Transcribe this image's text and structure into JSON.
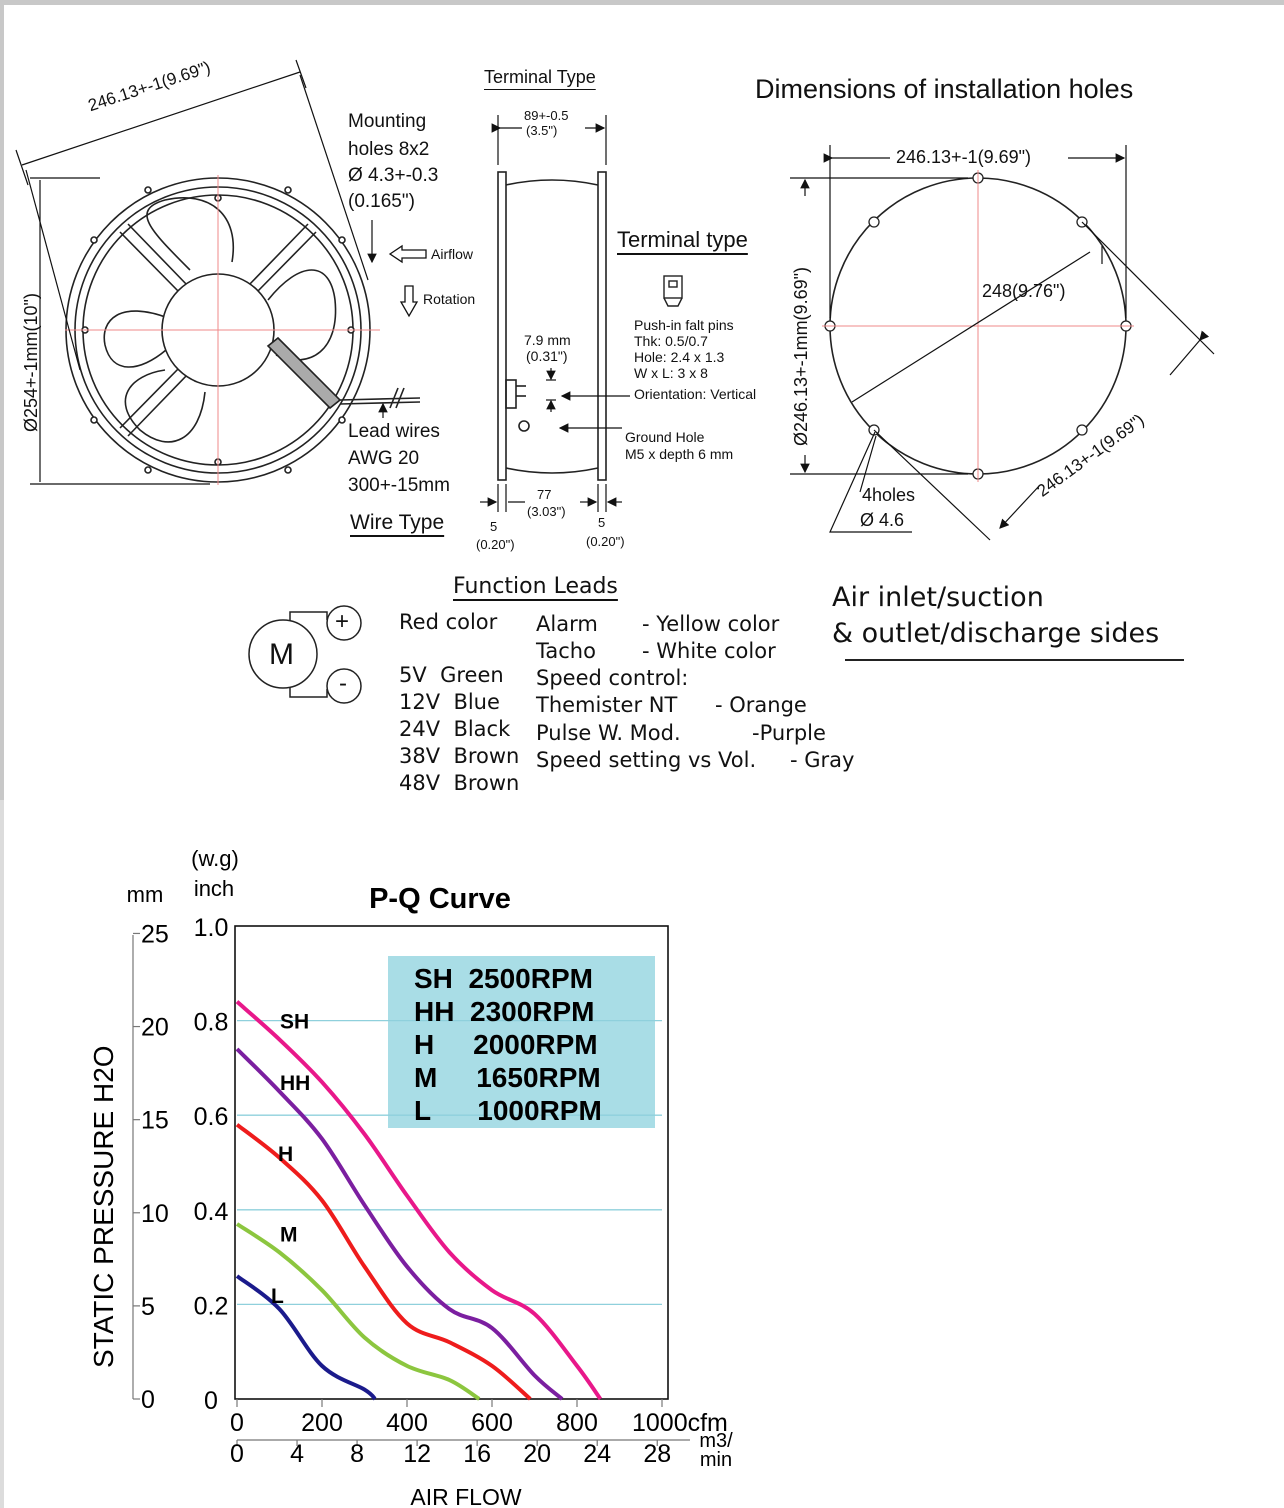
{
  "drawing": {
    "fan": {
      "diameter_top": "246.13+-1(9.69\")",
      "diameter_side": "Ø254+-1mm(10\")",
      "mounting": [
        "Mounting",
        "holes 8x2",
        "Ø 4.3+-0.3",
        "(0.165\")"
      ],
      "airflow": "Airflow",
      "rotation": "Rotation",
      "lead_wires": [
        "Lead wires",
        "AWG 20",
        "300+-15mm"
      ],
      "wire_type": "Wire Type"
    },
    "side": {
      "terminal_type_heading": "Terminal Type",
      "width": "89+-0.5",
      "width_in": "(3.5\")",
      "pin_dim": "7.9 mm",
      "pin_dim_in": "(0.31\")",
      "terminal_type_label": "Terminal type",
      "pins": [
        "Push-in falt pins",
        "Thk: 0.5/0.7",
        "Hole: 2.4 x 1.3",
        "W x L: 3 x 8",
        "Orientation: Vertical"
      ],
      "ground": [
        "Ground Hole",
        "M5 x depth 6 mm"
      ],
      "left_flange": "5",
      "left_flange_in": "(0.20\")",
      "body": "77",
      "body_in": "(3.03\")",
      "right_flange": "5",
      "right_flange_in": "(0.20\")"
    },
    "holes": {
      "title": "Dimensions of installation holes",
      "top_dim": "246.13+-1(9.69\")",
      "side_dim": "Ø246.13+-1mm(9.69\")",
      "diag_dim": "248(9.76\")",
      "bottom_dim": "246.13+-1(9.69\")",
      "holes_label": "4holes",
      "holes_dia": "Ø 4.6"
    },
    "leads": {
      "heading": "Function Leads",
      "motor": "M",
      "plus": "+",
      "minus": "-",
      "red": "Red color",
      "voltages": [
        "5V  Green",
        "12V  Blue",
        "24V  Black",
        "38V  Brown",
        "48V  Brown"
      ],
      "alarm": "Alarm",
      "alarm_color": "- Yellow color",
      "tacho": "Tacho",
      "tacho_color": "- White color",
      "speed": "Speed control:",
      "ntc": "Themister NT",
      "ntc_color": "- Orange",
      "pwm": "Pulse W. Mod.",
      "pwm_color": "-Purple",
      "vol": "Speed setting vs Vol.",
      "vol_color": "- Gray"
    },
    "inlet": [
      "Air inlet/suction",
      "& outlet/discharge sides"
    ]
  },
  "chart_data": {
    "type": "line",
    "title": "P-Q Curve",
    "ylabel": "STATIC PRESSURE H2O",
    "ylabel_units": [
      "(w.g)",
      "mm",
      "inch"
    ],
    "yticks_inch": [
      "1.0",
      "0.8",
      "0.6",
      "0.4",
      "0.2",
      "0"
    ],
    "yticks_mm": [
      "25",
      "20",
      "15",
      "10",
      "5",
      "0"
    ],
    "ylim_inch": [
      0,
      1.0
    ],
    "xlabel": "AIR FLOW",
    "xticks_cfm": [
      "0",
      "200",
      "400",
      "600",
      "800",
      "1000cfm"
    ],
    "xticks_m3": [
      "0",
      "4",
      "8",
      "12",
      "16",
      "20",
      "24",
      "28"
    ],
    "x_unit_m3": [
      "m3/",
      "min"
    ],
    "xlim_cfm": [
      0,
      1000
    ],
    "grid": "horizontal",
    "legend": [
      "SH  2500RPM",
      "HH  2300RPM",
      "H     2000RPM",
      "M     1650RPM",
      "L      1000RPM"
    ],
    "legend_bg": "#a9dde6",
    "series": [
      {
        "name": "SH",
        "color": "#e8188a",
        "x": [
          0,
          100,
          200,
          300,
          400,
          500,
          600,
          700,
          800,
          855
        ],
        "y": [
          0.84,
          0.76,
          0.67,
          0.56,
          0.43,
          0.31,
          0.23,
          0.18,
          0.07,
          0
        ]
      },
      {
        "name": "HH",
        "color": "#7b1fa0",
        "x": [
          0,
          100,
          200,
          300,
          400,
          500,
          600,
          700,
          765
        ],
        "y": [
          0.74,
          0.65,
          0.55,
          0.41,
          0.28,
          0.19,
          0.15,
          0.05,
          0
        ]
      },
      {
        "name": "H",
        "color": "#ee1c1c",
        "x": [
          0,
          100,
          200,
          300,
          400,
          500,
          600,
          690
        ],
        "y": [
          0.58,
          0.51,
          0.42,
          0.28,
          0.16,
          0.12,
          0.07,
          0
        ]
      },
      {
        "name": "M",
        "color": "#8cc63f",
        "x": [
          0,
          100,
          200,
          300,
          400,
          500,
          570
        ],
        "y": [
          0.37,
          0.31,
          0.23,
          0.13,
          0.07,
          0.04,
          0
        ]
      },
      {
        "name": "L",
        "color": "#1b1b8c",
        "x": [
          0,
          100,
          200,
          300,
          325
        ],
        "y": [
          0.26,
          0.19,
          0.07,
          0.02,
          0
        ]
      }
    ]
  }
}
